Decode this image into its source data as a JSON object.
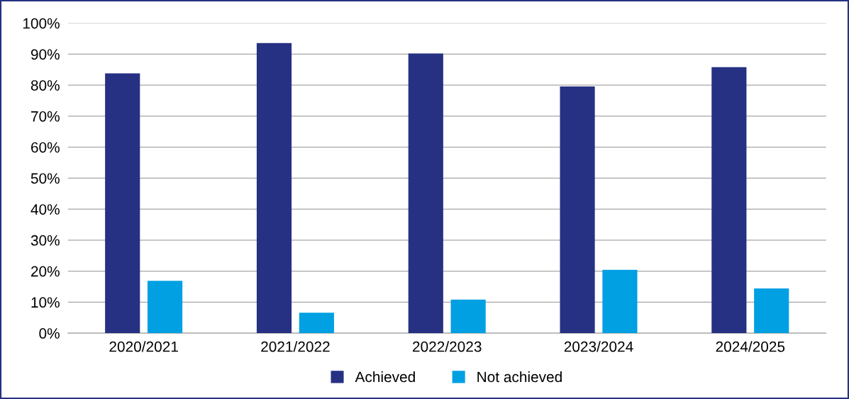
{
  "chart_data": {
    "type": "bar",
    "categories": [
      "2020/2021",
      "2021/2022",
      "2022/2023",
      "2023/2024",
      "2024/2025"
    ],
    "series": [
      {
        "name": "Achieved",
        "color": "#263183",
        "values": [
          83.8,
          93.6,
          90.2,
          79.6,
          85.8
        ]
      },
      {
        "name": "Not achieved",
        "color": "#00a0e3",
        "values": [
          16.9,
          6.6,
          10.8,
          20.4,
          14.4
        ]
      }
    ],
    "ylim": [
      0,
      100
    ],
    "yticks": [
      {
        "value": 0,
        "label": "0%"
      },
      {
        "value": 10,
        "label": "10%"
      },
      {
        "value": 20,
        "label": "20%"
      },
      {
        "value": 30,
        "label": "30%"
      },
      {
        "value": 40,
        "label": "40%"
      },
      {
        "value": 50,
        "label": "50%"
      },
      {
        "value": 60,
        "label": "60%"
      },
      {
        "value": 70,
        "label": "70%"
      },
      {
        "value": 80,
        "label": "80%"
      },
      {
        "value": 90,
        "label": "90%"
      },
      {
        "value": 100,
        "label": "100%"
      }
    ],
    "grid": "y",
    "legend": "bottom"
  }
}
